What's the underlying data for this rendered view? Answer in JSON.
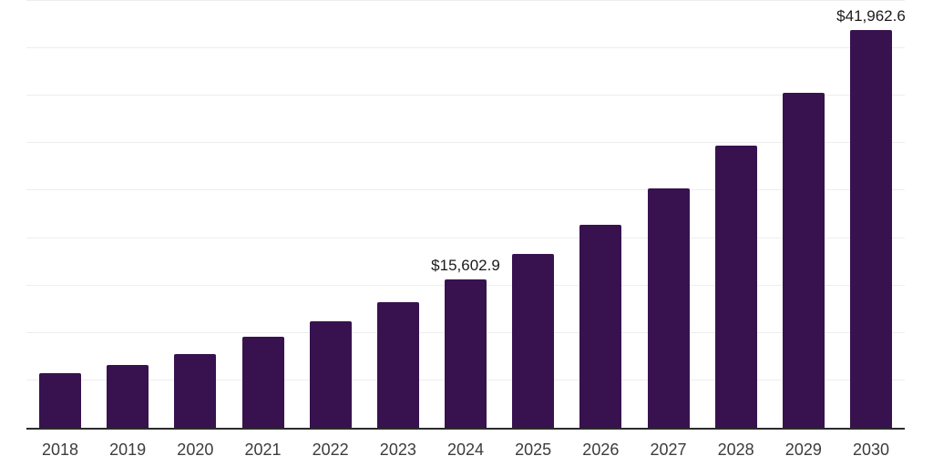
{
  "chart_data": {
    "type": "bar",
    "title": "",
    "xlabel": "",
    "ylabel": "",
    "categories": [
      "2018",
      "2019",
      "2020",
      "2021",
      "2022",
      "2023",
      "2024",
      "2025",
      "2026",
      "2027",
      "2028",
      "2029",
      "2030"
    ],
    "values": [
      5800,
      6650,
      7800,
      9600,
      11200,
      13250,
      15602.9,
      18300,
      21400,
      25250,
      29750,
      35350,
      41962.6
    ],
    "annotations": [
      {
        "category": "2024",
        "label": "$15,602.9"
      },
      {
        "category": "2030",
        "label": "$41,962.6"
      }
    ],
    "ylim": [
      0,
      45000
    ],
    "grid_step": 5000,
    "grid": true,
    "y_tick_labels_shown": false,
    "legend": false,
    "colors": {
      "bar": "#38124e",
      "axis": "#2b2b2b",
      "grid": "#ededed",
      "tick_label": "#3c3c3c",
      "value_label": "#1a1a1a"
    }
  }
}
